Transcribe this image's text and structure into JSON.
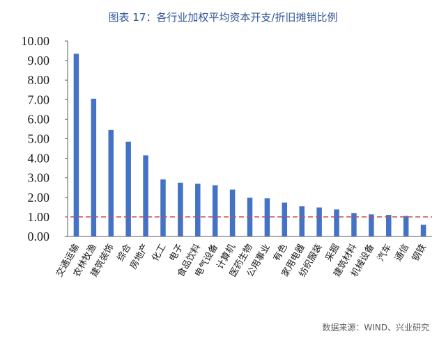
{
  "title": "图表 17：各行业加权平均资本开支/折旧摊销比例",
  "source": "数据来源：WIND、兴业研究",
  "chart_data": {
    "type": "bar",
    "title": "图表 17：各行业加权平均资本开支/折旧摊销比例",
    "categories": [
      "交通运输",
      "农林牧渔",
      "建筑装饰",
      "综合",
      "房地产",
      "化工",
      "电子",
      "食品饮料",
      "电气设备",
      "计算机",
      "医药生物",
      "公用事业",
      "有色",
      "家用电器",
      "纺织服装",
      "采掘",
      "建筑材料",
      "机械设备",
      "汽车",
      "通信",
      "钢铁"
    ],
    "values": [
      9.35,
      7.05,
      5.45,
      4.85,
      4.15,
      2.92,
      2.75,
      2.7,
      2.62,
      2.4,
      1.98,
      1.95,
      1.73,
      1.55,
      1.48,
      1.38,
      1.2,
      1.13,
      1.1,
      1.05,
      0.6
    ],
    "yticks": [
      "0.00",
      "1.00",
      "2.00",
      "3.00",
      "4.00",
      "5.00",
      "6.00",
      "7.00",
      "8.00",
      "9.00",
      "10.00"
    ],
    "ylim": [
      0,
      10
    ],
    "reference_line": 1.0,
    "bar_color": "#4472C4",
    "reference_color": "#C0504D",
    "grid": false,
    "xlabel": "",
    "ylabel": ""
  }
}
